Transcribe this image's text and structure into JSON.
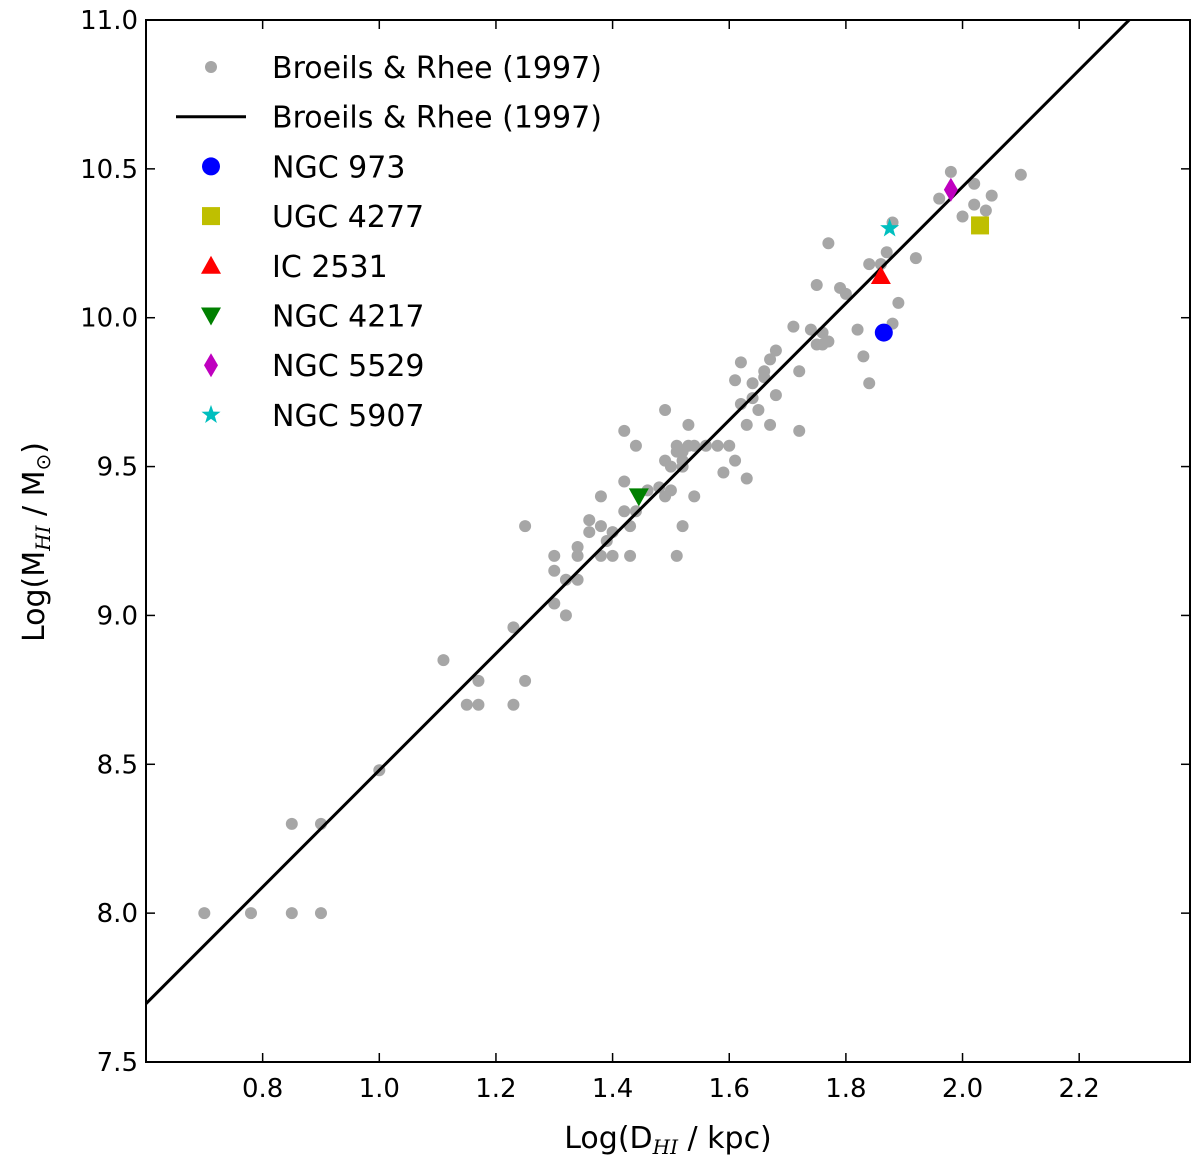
{
  "chart_data": {
    "type": "scatter",
    "xlabel": {
      "main": "Log(D",
      "sub": "HI",
      "tail": " / kpc)"
    },
    "ylabel": {
      "main": "Log(M",
      "sub": "HI",
      "mid": " / M",
      "sub2": "⊙",
      "tail": ")"
    },
    "xlim": [
      0.6,
      2.39
    ],
    "ylim": [
      7.5,
      11.0
    ],
    "x_ticks": [
      0.8,
      1.0,
      1.2,
      1.4,
      1.6,
      1.8,
      2.0,
      2.2
    ],
    "x_tick_labels": [
      "0.8",
      "1.0",
      "1.2",
      "1.4",
      "1.6",
      "1.8",
      "2.0",
      "2.2"
    ],
    "y_ticks": [
      7.5,
      8.0,
      8.5,
      9.0,
      9.5,
      10.0,
      10.5,
      11.0
    ],
    "y_tick_labels": [
      "7.5",
      "8.0",
      "8.5",
      "9.0",
      "9.5",
      "10.0",
      "10.5",
      "11.0"
    ],
    "grid": false,
    "legend_position": "top-left",
    "series": [
      {
        "name": "Broeils & Rhee (1997)",
        "kind": "points",
        "marker": "circle-small",
        "color": "#a6a6a6",
        "points": [
          [
            0.7,
            8.0
          ],
          [
            0.78,
            8.0
          ],
          [
            0.85,
            8.0
          ],
          [
            0.9,
            8.0
          ],
          [
            0.85,
            8.3
          ],
          [
            0.9,
            8.3
          ],
          [
            1.0,
            8.48
          ],
          [
            1.11,
            8.85
          ],
          [
            1.15,
            8.7
          ],
          [
            1.17,
            8.78
          ],
          [
            1.17,
            8.7
          ],
          [
            1.23,
            8.96
          ],
          [
            1.23,
            8.7
          ],
          [
            1.25,
            8.78
          ],
          [
            1.25,
            9.3
          ],
          [
            1.3,
            9.2
          ],
          [
            1.3,
            9.15
          ],
          [
            1.3,
            9.04
          ],
          [
            1.32,
            9.0
          ],
          [
            1.32,
            9.12
          ],
          [
            1.34,
            9.2
          ],
          [
            1.34,
            9.23
          ],
          [
            1.34,
            9.12
          ],
          [
            1.36,
            9.32
          ],
          [
            1.36,
            9.28
          ],
          [
            1.38,
            9.2
          ],
          [
            1.38,
            9.3
          ],
          [
            1.38,
            9.4
          ],
          [
            1.39,
            9.25
          ],
          [
            1.4,
            9.28
          ],
          [
            1.4,
            9.2
          ],
          [
            1.42,
            9.62
          ],
          [
            1.42,
            9.45
          ],
          [
            1.42,
            9.35
          ],
          [
            1.43,
            9.3
          ],
          [
            1.43,
            9.2
          ],
          [
            1.44,
            9.35
          ],
          [
            1.44,
            9.57
          ],
          [
            1.46,
            9.42
          ],
          [
            1.48,
            9.43
          ],
          [
            1.49,
            9.69
          ],
          [
            1.49,
            9.52
          ],
          [
            1.49,
            9.4
          ],
          [
            1.5,
            9.5
          ],
          [
            1.5,
            9.42
          ],
          [
            1.51,
            9.57
          ],
          [
            1.51,
            9.55
          ],
          [
            1.51,
            9.2
          ],
          [
            1.52,
            9.52
          ],
          [
            1.52,
            9.5
          ],
          [
            1.52,
            9.55
          ],
          [
            1.52,
            9.3
          ],
          [
            1.53,
            9.64
          ],
          [
            1.53,
            9.57
          ],
          [
            1.54,
            9.57
          ],
          [
            1.54,
            9.4
          ],
          [
            1.56,
            9.57
          ],
          [
            1.58,
            9.57
          ],
          [
            1.59,
            9.48
          ],
          [
            1.6,
            9.57
          ],
          [
            1.61,
            9.52
          ],
          [
            1.61,
            9.79
          ],
          [
            1.62,
            9.85
          ],
          [
            1.62,
            9.71
          ],
          [
            1.63,
            9.46
          ],
          [
            1.63,
            9.64
          ],
          [
            1.64,
            9.73
          ],
          [
            1.64,
            9.78
          ],
          [
            1.65,
            9.69
          ],
          [
            1.66,
            9.8
          ],
          [
            1.66,
            9.82
          ],
          [
            1.67,
            9.86
          ],
          [
            1.67,
            9.64
          ],
          [
            1.68,
            9.89
          ],
          [
            1.68,
            9.74
          ],
          [
            1.71,
            9.97
          ],
          [
            1.72,
            9.82
          ],
          [
            1.72,
            9.62
          ],
          [
            1.74,
            9.96
          ],
          [
            1.75,
            9.91
          ],
          [
            1.75,
            10.11
          ],
          [
            1.76,
            9.91
          ],
          [
            1.76,
            9.95
          ],
          [
            1.77,
            10.25
          ],
          [
            1.77,
            9.92
          ],
          [
            1.79,
            10.1
          ],
          [
            1.8,
            10.08
          ],
          [
            1.82,
            9.96
          ],
          [
            1.83,
            9.87
          ],
          [
            1.84,
            10.18
          ],
          [
            1.84,
            9.78
          ],
          [
            1.86,
            10.18
          ],
          [
            1.87,
            10.22
          ],
          [
            1.88,
            10.32
          ],
          [
            1.88,
            9.98
          ],
          [
            1.89,
            10.05
          ],
          [
            1.92,
            10.2
          ],
          [
            1.96,
            10.4
          ],
          [
            1.98,
            10.49
          ],
          [
            2.0,
            10.34
          ],
          [
            2.02,
            10.45
          ],
          [
            2.02,
            10.38
          ],
          [
            2.04,
            10.36
          ],
          [
            2.05,
            10.41
          ],
          [
            2.1,
            10.48
          ]
        ]
      },
      {
        "name": "Broeils & Rhee (1997)",
        "kind": "line",
        "color": "#000000",
        "slope": 1.96,
        "intercept": 6.52
      },
      {
        "name": "NGC 973",
        "kind": "points",
        "marker": "circle",
        "color": "#0000ff",
        "points": [
          [
            1.865,
            9.95
          ]
        ]
      },
      {
        "name": "UGC 4277",
        "kind": "points",
        "marker": "square",
        "color": "#bfbf00",
        "points": [
          [
            2.03,
            10.31
          ]
        ]
      },
      {
        "name": "IC 2531",
        "kind": "points",
        "marker": "triangle-up",
        "color": "#ff0000",
        "points": [
          [
            1.86,
            10.14
          ]
        ]
      },
      {
        "name": "NGC 4217",
        "kind": "points",
        "marker": "triangle-down",
        "color": "#008000",
        "points": [
          [
            1.445,
            9.4
          ]
        ]
      },
      {
        "name": "NGC 5529",
        "kind": "points",
        "marker": "diamond",
        "color": "#bf00bf",
        "points": [
          [
            1.98,
            10.43
          ]
        ]
      },
      {
        "name": "NGC 5907",
        "kind": "points",
        "marker": "star",
        "color": "#00bfbf",
        "points": [
          [
            1.875,
            10.3
          ]
        ]
      }
    ]
  }
}
